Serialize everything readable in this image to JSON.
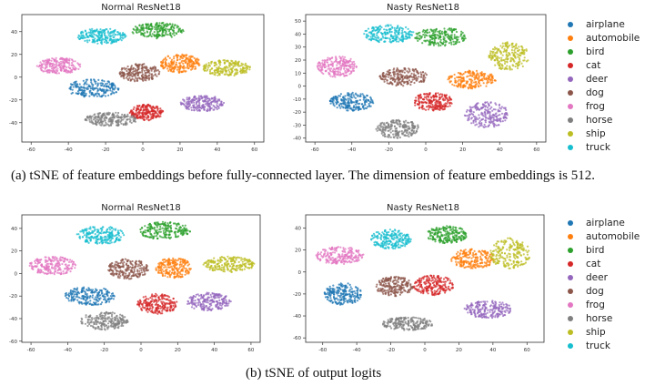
{
  "classes": [
    "airplane",
    "automobile",
    "bird",
    "cat",
    "deer",
    "dog",
    "frog",
    "horse",
    "ship",
    "truck"
  ],
  "class_colors": [
    "#1f77b4",
    "#ff7f0e",
    "#2ca02c",
    "#d62728",
    "#9467bd",
    "#8c564b",
    "#e377c2",
    "#7f7f7f",
    "#bcbd22",
    "#17becf"
  ],
  "captions": {
    "a": "(a) tSNE of feature embeddings before fully-connected layer. The dimension of feature embeddings is 512.",
    "b": "(b) tSNE of output logits"
  },
  "chart_data": [
    {
      "type": "scatter",
      "title": "Normal ResNet18",
      "xlim": [
        -65,
        65
      ],
      "ylim": [
        -57,
        55
      ],
      "xticks": [
        -60,
        -40,
        -20,
        0,
        20,
        40,
        60
      ],
      "yticks": [
        -40,
        -20,
        0,
        20,
        40
      ],
      "grid": false,
      "legend": "right",
      "clusters": [
        {
          "name": "airplane",
          "cx": -27,
          "cy": -10,
          "sx": 14,
          "sy": 8
        },
        {
          "name": "automobile",
          "cx": 20,
          "cy": 12,
          "sx": 11,
          "sy": 8
        },
        {
          "name": "bird",
          "cx": 8,
          "cy": 41,
          "sx": 14,
          "sy": 7
        },
        {
          "name": "cat",
          "cx": 2,
          "cy": -31,
          "sx": 9,
          "sy": 7
        },
        {
          "name": "deer",
          "cx": 32,
          "cy": -23,
          "sx": 12,
          "sy": 7
        },
        {
          "name": "dog",
          "cx": -2,
          "cy": 4,
          "sx": 11,
          "sy": 8
        },
        {
          "name": "frog",
          "cx": -45,
          "cy": 10,
          "sx": 12,
          "sy": 7
        },
        {
          "name": "horse",
          "cx": -17,
          "cy": -37,
          "sx": 14,
          "sy": 6
        },
        {
          "name": "ship",
          "cx": 45,
          "cy": 8,
          "sx": 13,
          "sy": 7
        },
        {
          "name": "truck",
          "cx": -22,
          "cy": 36,
          "sx": 13,
          "sy": 7
        }
      ]
    },
    {
      "type": "scatter",
      "title": "Nasty ResNet18",
      "xlim": [
        -65,
        65
      ],
      "ylim": [
        -43,
        55
      ],
      "xticks": [
        -60,
        -40,
        -20,
        0,
        20,
        40,
        60
      ],
      "yticks": [
        -40,
        -30,
        -20,
        -10,
        0,
        10,
        20,
        30,
        40,
        50
      ],
      "grid": false,
      "legend": "right",
      "clusters": [
        {
          "name": "airplane",
          "cx": -40,
          "cy": -12,
          "sx": 12,
          "sy": 7
        },
        {
          "name": "automobile",
          "cx": 25,
          "cy": 5,
          "sx": 13,
          "sy": 7
        },
        {
          "name": "bird",
          "cx": 8,
          "cy": 38,
          "sx": 14,
          "sy": 7
        },
        {
          "name": "cat",
          "cx": 4,
          "cy": -12,
          "sx": 11,
          "sy": 7
        },
        {
          "name": "deer",
          "cx": 33,
          "cy": -22,
          "sx": 12,
          "sy": 10
        },
        {
          "name": "dog",
          "cx": -12,
          "cy": 7,
          "sx": 13,
          "sy": 7
        },
        {
          "name": "frog",
          "cx": -48,
          "cy": 15,
          "sx": 11,
          "sy": 8
        },
        {
          "name": "horse",
          "cx": -15,
          "cy": -33,
          "sx": 12,
          "sy": 7
        },
        {
          "name": "ship",
          "cx": 45,
          "cy": 23,
          "sx": 11,
          "sy": 11
        },
        {
          "name": "truck",
          "cx": -20,
          "cy": 40,
          "sx": 14,
          "sy": 7
        }
      ]
    },
    {
      "type": "scatter",
      "title": "Normal ResNet18",
      "xlim": [
        -65,
        65
      ],
      "ylim": [
        -61,
        52
      ],
      "xticks": [
        -60,
        -40,
        -20,
        0,
        20,
        40,
        60
      ],
      "yticks": [
        -60,
        -40,
        -20,
        0,
        20,
        40
      ],
      "grid": false,
      "legend": "right",
      "clusters": [
        {
          "name": "airplane",
          "cx": -28,
          "cy": -20,
          "sx": 14,
          "sy": 8
        },
        {
          "name": "automobile",
          "cx": 18,
          "cy": 5,
          "sx": 10,
          "sy": 9
        },
        {
          "name": "bird",
          "cx": 13,
          "cy": 38,
          "sx": 14,
          "sy": 8
        },
        {
          "name": "cat",
          "cx": 9,
          "cy": -27,
          "sx": 11,
          "sy": 9
        },
        {
          "name": "deer",
          "cx": 37,
          "cy": -25,
          "sx": 12,
          "sy": 8
        },
        {
          "name": "dog",
          "cx": -7,
          "cy": 4,
          "sx": 11,
          "sy": 9
        },
        {
          "name": "frog",
          "cx": -48,
          "cy": 7,
          "sx": 13,
          "sy": 8
        },
        {
          "name": "horse",
          "cx": -20,
          "cy": -42,
          "sx": 13,
          "sy": 8
        },
        {
          "name": "ship",
          "cx": 48,
          "cy": 8,
          "sx": 14,
          "sy": 7
        },
        {
          "name": "truck",
          "cx": -22,
          "cy": 34,
          "sx": 13,
          "sy": 8
        }
      ]
    },
    {
      "type": "scatter",
      "title": "Nasty ResNet18",
      "xlim": [
        -70,
        70
      ],
      "ylim": [
        -64,
        52
      ],
      "xticks": [
        -60,
        -40,
        -20,
        0,
        20,
        40,
        60
      ],
      "yticks": [
        -60,
        -40,
        -20,
        0,
        20,
        40
      ],
      "grid": false,
      "legend": "right",
      "clusters": [
        {
          "name": "airplane",
          "cx": -48,
          "cy": -20,
          "sx": 11,
          "sy": 10
        },
        {
          "name": "automobile",
          "cx": 28,
          "cy": 12,
          "sx": 13,
          "sy": 9
        },
        {
          "name": "bird",
          "cx": 13,
          "cy": 34,
          "sx": 12,
          "sy": 8
        },
        {
          "name": "cat",
          "cx": 5,
          "cy": -12,
          "sx": 12,
          "sy": 9
        },
        {
          "name": "deer",
          "cx": 37,
          "cy": -34,
          "sx": 14,
          "sy": 8
        },
        {
          "name": "dog",
          "cx": -18,
          "cy": -13,
          "sx": 11,
          "sy": 9
        },
        {
          "name": "frog",
          "cx": -50,
          "cy": 15,
          "sx": 14,
          "sy": 8
        },
        {
          "name": "horse",
          "cx": -10,
          "cy": -47,
          "sx": 15,
          "sy": 6
        },
        {
          "name": "ship",
          "cx": 50,
          "cy": 17,
          "sx": 12,
          "sy": 14
        },
        {
          "name": "truck",
          "cx": -20,
          "cy": 30,
          "sx": 12,
          "sy": 9
        }
      ]
    }
  ]
}
